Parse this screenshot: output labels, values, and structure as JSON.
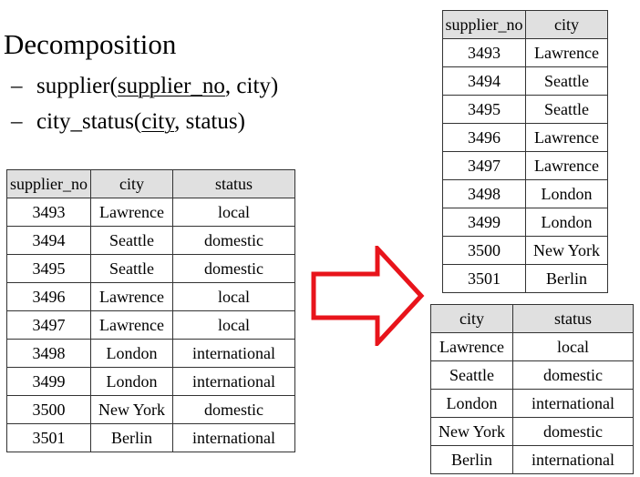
{
  "heading": "Decomposition",
  "bullets": [
    {
      "dash": "–",
      "pre": "supplier(",
      "key": "supplier_no",
      "post": ", city)"
    },
    {
      "dash": "–",
      "pre": "city_status(",
      "key": "city",
      "post": ", status)"
    }
  ],
  "main_table": {
    "headers": [
      "supplier_no",
      "city",
      "status"
    ],
    "rows": [
      [
        "3493",
        "Lawrence",
        "local"
      ],
      [
        "3494",
        "Seattle",
        "domestic"
      ],
      [
        "3495",
        "Seattle",
        "domestic"
      ],
      [
        "3496",
        "Lawrence",
        "local"
      ],
      [
        "3497",
        "Lawrence",
        "local"
      ],
      [
        "3498",
        "London",
        "international"
      ],
      [
        "3499",
        "London",
        "international"
      ],
      [
        "3500",
        "New York",
        "domestic"
      ],
      [
        "3501",
        "Berlin",
        "international"
      ]
    ]
  },
  "supplier_table": {
    "headers": [
      "supplier_no",
      "city"
    ],
    "rows": [
      [
        "3493",
        "Lawrence"
      ],
      [
        "3494",
        "Seattle"
      ],
      [
        "3495",
        "Seattle"
      ],
      [
        "3496",
        "Lawrence"
      ],
      [
        "3497",
        "Lawrence"
      ],
      [
        "3498",
        "London"
      ],
      [
        "3499",
        "London"
      ],
      [
        "3500",
        "New York"
      ],
      [
        "3501",
        "Berlin"
      ]
    ]
  },
  "city_status_table": {
    "headers": [
      "city",
      "status"
    ],
    "rows": [
      [
        "Lawrence",
        "local"
      ],
      [
        "Seattle",
        "domestic"
      ],
      [
        "London",
        "international"
      ],
      [
        "New York",
        "domestic"
      ],
      [
        "Berlin",
        "international"
      ]
    ]
  },
  "colors": {
    "arrow_stroke": "#e8141b",
    "header_fill": "#e0e0e0"
  },
  "icons": {
    "arrow": "right-arrow-icon"
  }
}
